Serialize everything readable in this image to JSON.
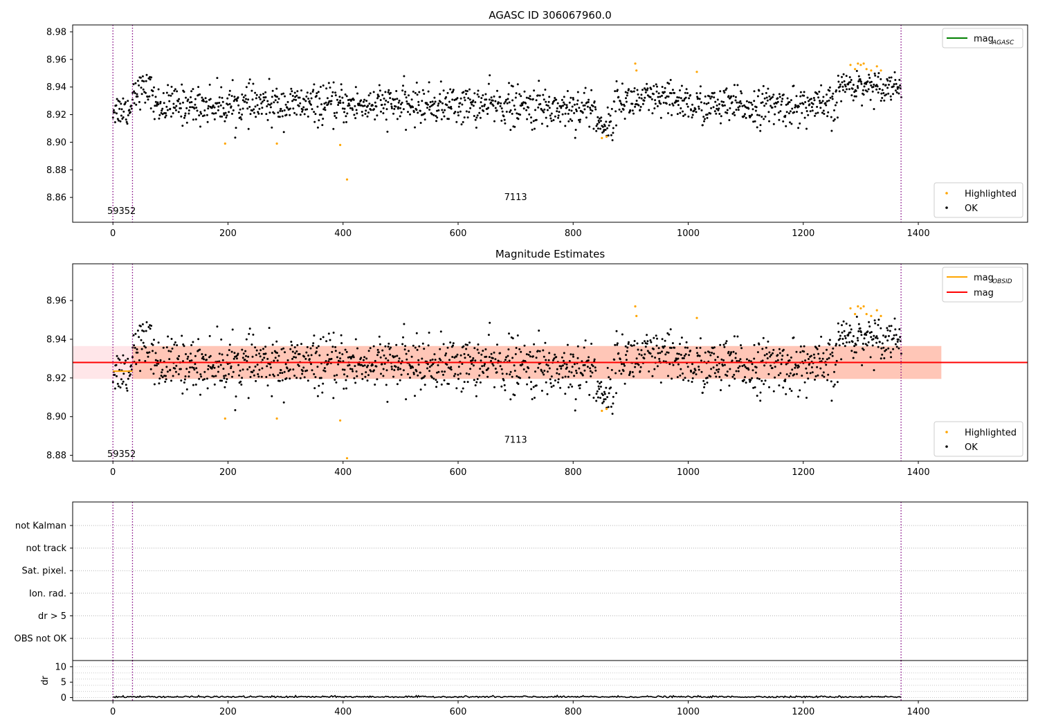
{
  "chart_data": [
    {
      "type": "scatter",
      "title": "AGASC ID 306067960.0",
      "xlim": [
        -70,
        1590
      ],
      "ylim": [
        8.842,
        8.985
      ],
      "xticks": [
        0,
        200,
        400,
        600,
        800,
        1000,
        1200,
        1400
      ],
      "yticks": [
        8.86,
        8.88,
        8.9,
        8.92,
        8.94,
        8.96,
        8.98
      ],
      "ytick_labels": [
        "8.86",
        "8.88",
        "8.90",
        "8.92",
        "8.94",
        "8.96",
        "8.98"
      ],
      "obs_boundaries": [
        0,
        34,
        1370
      ],
      "annotations": [
        {
          "text": "59352",
          "x": 15,
          "y": 8.85
        },
        {
          "text": "7113",
          "x": 700,
          "y": 8.86
        }
      ],
      "legend_top": {
        "position": "top-right",
        "entries": [
          {
            "label": "mag",
            "sub": "AGASC",
            "color": "#008000"
          }
        ]
      },
      "legend_bottom": {
        "position": "bottom-right",
        "entries": [
          {
            "label": "Highlighted",
            "color": "#ffa500"
          },
          {
            "label": "OK",
            "color": "#000000"
          }
        ]
      },
      "series": [
        {
          "name": "OK",
          "points": "dense sample around mean",
          "model": {
            "x_range": [
              0,
              1370
            ],
            "segments": [
              {
                "x": [
                  0,
                  34
                ],
                "mean": 8.924,
                "spread": 0.007
              },
              {
                "x": [
                  34,
                  70
                ],
                "mean": 8.938,
                "spread": 0.007
              },
              {
                "x": [
                  70,
                  690
                ],
                "mean": 8.927,
                "spread": 0.008
              },
              {
                "x": [
                  690,
                  840
                ],
                "mean": 8.925,
                "spread": 0.009
              },
              {
                "x": [
                  840,
                  870
                ],
                "mean": 8.913,
                "spread": 0.006
              },
              {
                "x": [
                  870,
                  1000
                ],
                "mean": 8.93,
                "spread": 0.008
              },
              {
                "x": [
                  1000,
                  1260
                ],
                "mean": 8.926,
                "spread": 0.008
              },
              {
                "x": [
                  1260,
                  1370
                ],
                "mean": 8.941,
                "spread": 0.006
              }
            ]
          }
        },
        {
          "name": "Highlighted",
          "x": [
            195,
            285,
            395,
            407,
            850,
            858,
            908,
            910,
            1015,
            1282,
            1290,
            1295,
            1300,
            1305,
            1310,
            1318,
            1328,
            1335
          ],
          "y": [
            8.899,
            8.899,
            8.898,
            8.873,
            8.903,
            8.904,
            8.957,
            8.952,
            8.951,
            8.956,
            8.953,
            8.957,
            8.956,
            8.957,
            8.953,
            8.952,
            8.955,
            8.952
          ]
        }
      ]
    },
    {
      "type": "scatter",
      "title": "Magnitude Estimates",
      "xlim": [
        -70,
        1590
      ],
      "ylim": [
        8.877,
        8.979
      ],
      "xticks": [
        0,
        200,
        400,
        600,
        800,
        1000,
        1200,
        1400
      ],
      "yticks": [
        8.88,
        8.9,
        8.92,
        8.94,
        8.96
      ],
      "ytick_labels": [
        "8.88",
        "8.90",
        "8.92",
        "8.94",
        "8.96"
      ],
      "obs_boundaries": [
        0,
        34,
        1370
      ],
      "annotations": [
        {
          "text": "59352",
          "x": 15,
          "y": 8.8805
        },
        {
          "text": "7113",
          "x": 700,
          "y": 8.888
        }
      ],
      "bands": [
        {
          "x": [
            -70,
            1440
          ],
          "y": [
            8.9195,
            8.9365
          ],
          "color": "#ffb6c1",
          "alpha": 0.35
        },
        {
          "x": [
            34,
            1440
          ],
          "y": [
            8.9195,
            8.9365
          ],
          "color": "#ffa07a",
          "alpha": 0.45
        }
      ],
      "lines": [
        {
          "name": "mag",
          "y": 8.928,
          "x": [
            -70,
            1590
          ],
          "color": "#ff0000"
        },
        {
          "name": "mag_OBSID",
          "y": 8.9235,
          "x": [
            0,
            34
          ],
          "color": "#ffa500"
        }
      ],
      "legend_top": {
        "position": "top-right",
        "entries": [
          {
            "label": "mag",
            "sub": "OBSID",
            "color": "#ffa500"
          },
          {
            "label": "mag",
            "sub": "",
            "color": "#ff0000"
          }
        ]
      },
      "legend_bottom": {
        "position": "bottom-right",
        "entries": [
          {
            "label": "Highlighted",
            "color": "#ffa500"
          },
          {
            "label": "OK",
            "color": "#000000"
          }
        ]
      }
    },
    {
      "type": "table",
      "description_rows": [
        "not Kalman",
        "not track",
        "Sat. pixel.",
        "Ion. rad.",
        "dr > 5",
        "OBS not OK"
      ],
      "xlim": [
        -70,
        1590
      ],
      "obs_boundaries": [
        0,
        34,
        1370
      ]
    },
    {
      "type": "line",
      "ylabel": "dr",
      "xlim": [
        -70,
        1590
      ],
      "ylim": [
        -1,
        12
      ],
      "yticks": [
        0,
        5,
        10
      ],
      "ytick_labels": [
        "0",
        "5",
        "10"
      ],
      "xticks": [
        0,
        200,
        400,
        600,
        800,
        1000,
        1200,
        1400
      ],
      "obs_boundaries": [
        0,
        34,
        1370
      ],
      "series": [
        {
          "name": "dr",
          "model": {
            "x_range": [
              0,
              1370
            ],
            "level": 0.25,
            "spread": 0.25
          }
        }
      ]
    }
  ]
}
